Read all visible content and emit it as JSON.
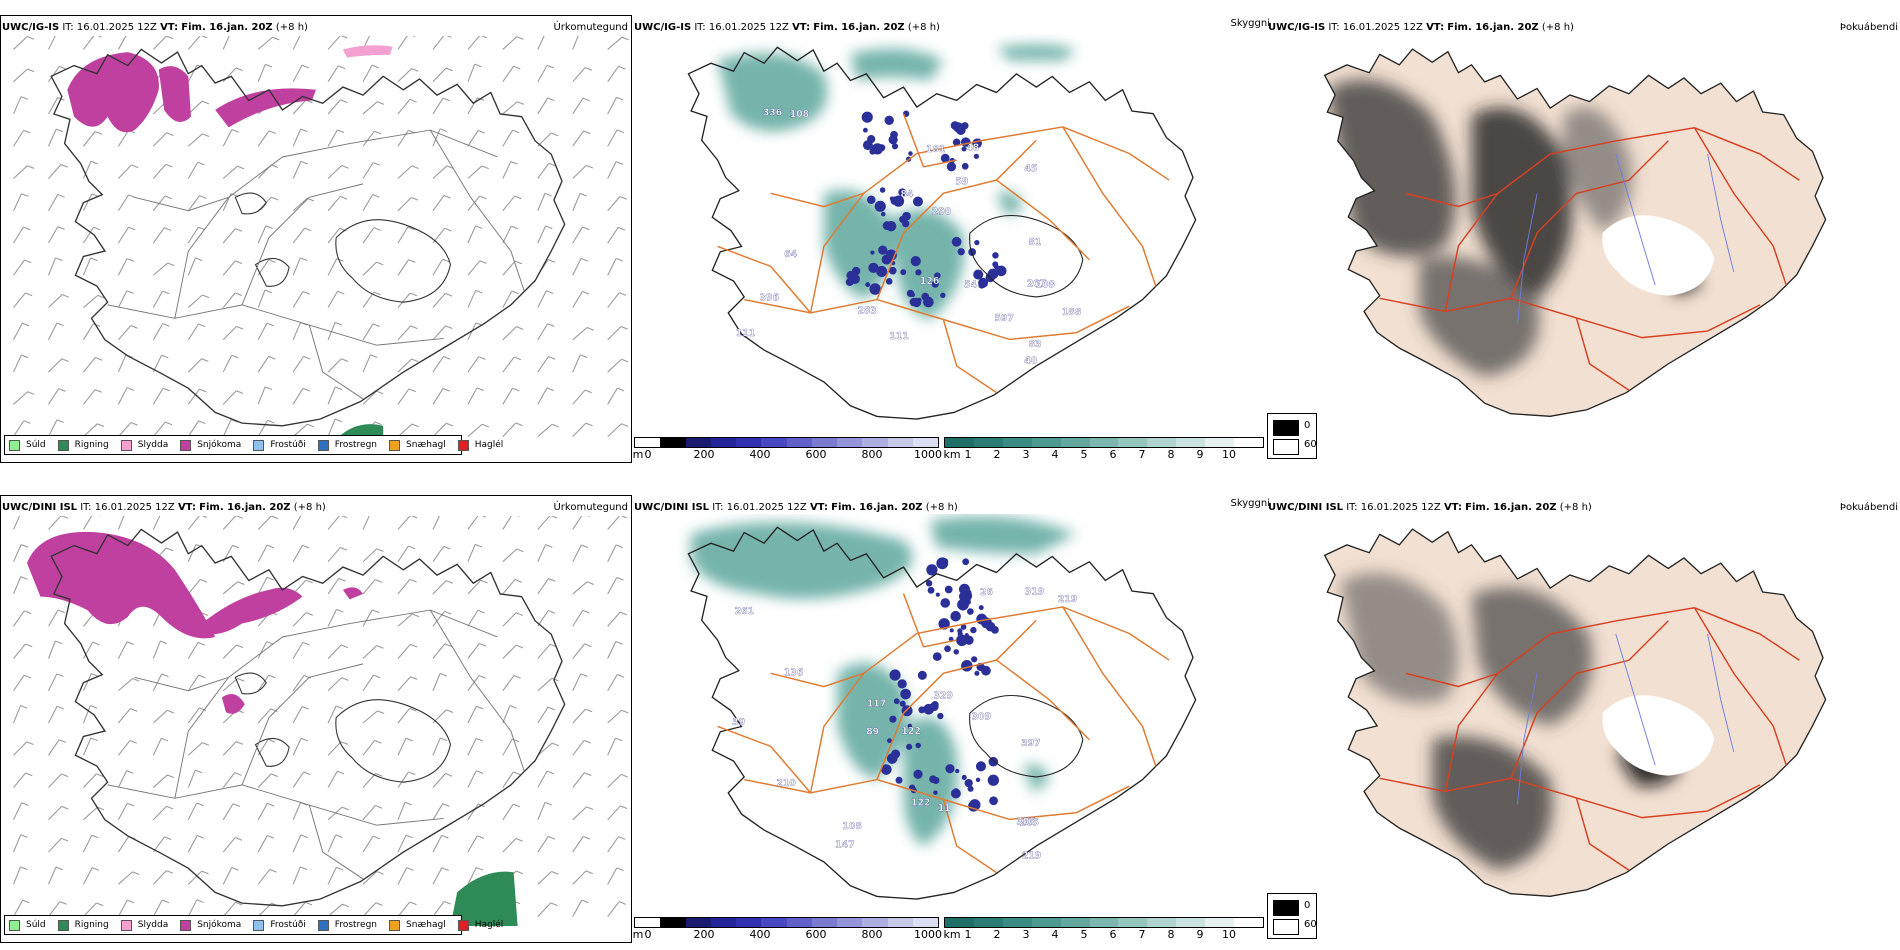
{
  "rows": [
    {
      "model": "UWC/IG-IS",
      "it_label": "IT:",
      "it_value": "16.01.2025 12Z",
      "vt_label": "VT:",
      "vt_value": "Fim. 16.jan. 20Z",
      "offset": "(+8 h)",
      "panel1_title": "Úrkomutegund",
      "panel2_title": "Skyggni",
      "panel3_title": "Þokuábendi",
      "visibility_labels": [
        "396",
        "290",
        "207",
        "188",
        "181",
        "597",
        "84",
        "59",
        "108",
        "111",
        "108",
        "126",
        "81",
        "111",
        "336",
        "283",
        "40",
        "45",
        "83",
        "54",
        "64",
        "48"
      ]
    },
    {
      "model": "UWC/DINI ISL",
      "it_label": "IT:",
      "it_value": "16.01.2025 12Z",
      "vt_label": "VT:",
      "vt_value": "Fim. 16.jan. 20Z",
      "offset": "(+8 h)",
      "panel1_title": "Úrkomutegund",
      "panel2_title": "Skyggni",
      "panel3_title": "Þokuábendi",
      "visibility_labels": [
        "397",
        "309",
        "205",
        "261",
        "305",
        "319",
        "117",
        "219",
        "147",
        "108",
        "89",
        "122",
        "210",
        "122",
        "219",
        "136",
        "329",
        "11",
        "26",
        "39"
      ]
    }
  ],
  "legend": [
    {
      "label": "Súld",
      "color": "#90ee90"
    },
    {
      "label": "Rigning",
      "color": "#2e8b57"
    },
    {
      "label": "Slydda",
      "color": "#f4a0d0"
    },
    {
      "label": "Snjókoma",
      "color": "#c040a0"
    },
    {
      "label": "Frostúði",
      "color": "#90c0f0"
    },
    {
      "label": "Frostregn",
      "color": "#3070c0"
    },
    {
      "label": "Snæhagl",
      "color": "#f0a020"
    },
    {
      "label": "Haglél",
      "color": "#e02020"
    }
  ],
  "height_scale": {
    "unit": "m",
    "ticks": [
      "0",
      "200",
      "400",
      "600",
      "800",
      "1000"
    ]
  },
  "vis_scale": {
    "unit": "km",
    "ticks": [
      "1",
      "2",
      "3",
      "4",
      "5",
      "6",
      "7",
      "8",
      "9",
      "10"
    ]
  },
  "fog_scale": {
    "ticks": [
      "0",
      "60"
    ]
  },
  "colors": {
    "snow": "#c040a0",
    "rain": "#2e8b57",
    "teal": "#3a9488",
    "navy": "#2a3098",
    "road": "#e07a30",
    "roadred": "#d84020",
    "land": "#f2e0d2"
  }
}
